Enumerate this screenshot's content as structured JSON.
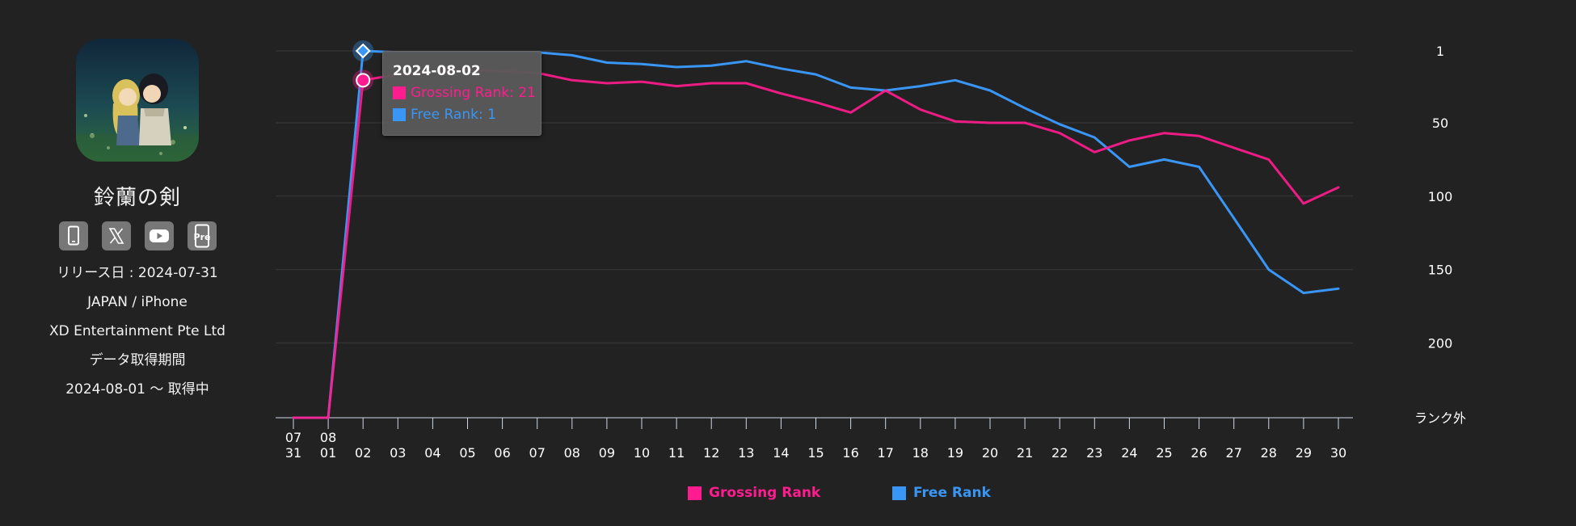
{
  "app": {
    "title": "鈴蘭の剣",
    "release": "リリース日 : 2024-07-31",
    "region": "JAPAN / iPhone",
    "publisher": "XD Entertainment Pte Ltd",
    "period_label": "データ取得期間",
    "period": "2024-08-01 〜 取得中",
    "links": [
      "iphone-icon",
      "x-icon",
      "youtube-icon",
      "pre-register-icon"
    ],
    "icon_text": "Pre"
  },
  "tooltip": {
    "date": "2024-08-02",
    "grossing": "Grossing Rank: 21",
    "free": "Free Rank: 1"
  },
  "legend": {
    "grossing": "Grossing Rank",
    "free": "Free Rank"
  },
  "colors": {
    "background": "#222222",
    "grossing": "#ff1c8e",
    "free": "#3a96f5",
    "grid": "#3a3a3a",
    "axis": "#cfd6e8"
  },
  "chart_data": {
    "type": "line",
    "title": "",
    "xlabel": "",
    "ylabel": "",
    "y_reversed": true,
    "y_axis_position": "right",
    "ylim": [
      1,
      251
    ],
    "y_ticks": [
      1,
      50,
      100,
      150,
      200,
      251
    ],
    "y_tick_labels": [
      "1",
      "50",
      "100",
      "150",
      "200",
      "ランク外"
    ],
    "out_of_rank_label": "ランク外",
    "categories": [
      [
        "07",
        "31"
      ],
      [
        "08",
        "01"
      ],
      [
        "02"
      ],
      [
        "03"
      ],
      [
        "04"
      ],
      [
        "05"
      ],
      [
        "06"
      ],
      [
        "07"
      ],
      [
        "08"
      ],
      [
        "09"
      ],
      [
        "10"
      ],
      [
        "11"
      ],
      [
        "12"
      ],
      [
        "13"
      ],
      [
        "14"
      ],
      [
        "15"
      ],
      [
        "16"
      ],
      [
        "17"
      ],
      [
        "18"
      ],
      [
        "19"
      ],
      [
        "20"
      ],
      [
        "21"
      ],
      [
        "22"
      ],
      [
        "23"
      ],
      [
        "24"
      ],
      [
        "25"
      ],
      [
        "26"
      ],
      [
        "27"
      ],
      [
        "28"
      ],
      [
        "29"
      ],
      [
        "30"
      ]
    ],
    "series": [
      {
        "name": "Grossing Rank",
        "values": [
          251,
          251,
          21,
          17,
          15,
          14,
          15,
          16,
          21,
          23,
          22,
          25,
          23,
          23,
          30,
          36,
          43,
          28,
          41,
          49,
          50,
          50,
          57,
          70,
          62,
          57,
          59,
          67,
          75,
          105,
          94
        ]
      },
      {
        "name": "Free Rank",
        "values": [
          251,
          251,
          1,
          2,
          2,
          2,
          2,
          2,
          4,
          9,
          10,
          12,
          11,
          8,
          13,
          17,
          26,
          28,
          25,
          21,
          28,
          40,
          51,
          60,
          80,
          75,
          80,
          115,
          150,
          166,
          163
        ]
      }
    ],
    "highlight_index": 2,
    "legend_position": "bottom-center"
  }
}
